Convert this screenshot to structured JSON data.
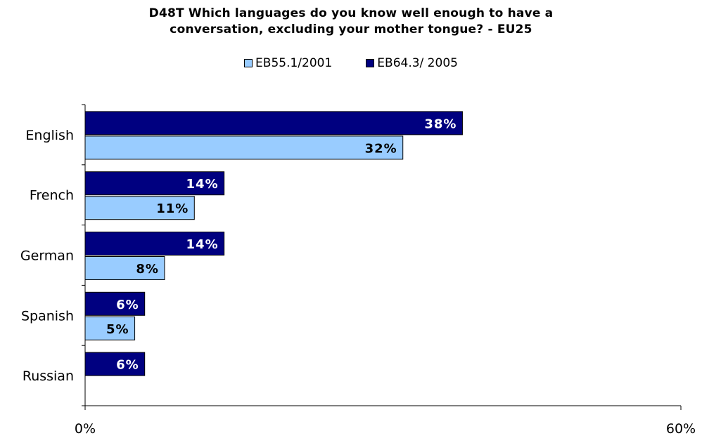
{
  "chart_data": {
    "type": "bar",
    "orientation": "horizontal",
    "title_lines": [
      "D48T Which languages do you know well enough to have a",
      "conversation, excluding your mother tongue? - EU25"
    ],
    "categories": [
      "English",
      "French",
      "German",
      "Spanish",
      "Russian"
    ],
    "series": [
      {
        "name": "EB64.3/ 2005",
        "values": [
          38,
          14,
          14,
          6,
          6
        ],
        "color": "#000080",
        "label_color": "#ffffff"
      },
      {
        "name": "EB55.1/2001",
        "values": [
          32,
          11,
          8,
          5,
          null
        ],
        "color": "#99ccff",
        "label_color": "#000000"
      }
    ],
    "legend_order": [
      "EB55.1/2001",
      "EB64.3/ 2005"
    ],
    "legend_colors": [
      "#99ccff",
      "#000080"
    ],
    "value_suffix": "%",
    "xlim": [
      0,
      60
    ],
    "x_tick_labels": [
      "0%",
      "60%"
    ],
    "legend_position": "top-center",
    "grid": false
  }
}
